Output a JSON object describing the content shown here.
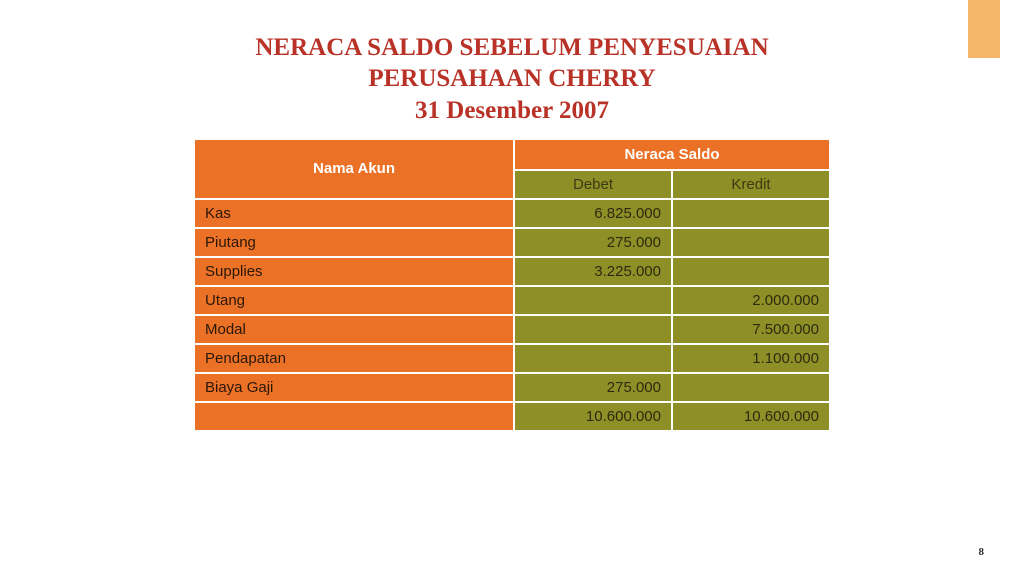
{
  "accent_color": "#f5b56b",
  "title": {
    "line1": "NERACA SALDO SEBELUM PENYESUAIAN",
    "line2": "PERUSAHAAN CHERRY",
    "line3": "31 Desember 2007"
  },
  "table": {
    "header": {
      "account": "Nama Akun",
      "group": "Neraca Saldo",
      "debit": "Debet",
      "credit": "Kredit"
    },
    "rows": [
      {
        "name": "Kas",
        "debit": "6.825.000",
        "credit": ""
      },
      {
        "name": "Piutang",
        "debit": "275.000",
        "credit": ""
      },
      {
        "name": "Supplies",
        "debit": "3.225.000",
        "credit": ""
      },
      {
        "name": "Utang",
        "debit": "",
        "credit": "2.000.000"
      },
      {
        "name": "Modal",
        "debit": "",
        "credit": "7.500.000"
      },
      {
        "name": "Pendapatan",
        "debit": "",
        "credit": "1.100.000"
      },
      {
        "name": "Biaya Gaji",
        "debit": "275.000",
        "credit": ""
      }
    ],
    "totals": {
      "name": "",
      "debit": "10.600.000",
      "credit": "10.600.000"
    }
  },
  "page_number": "8"
}
